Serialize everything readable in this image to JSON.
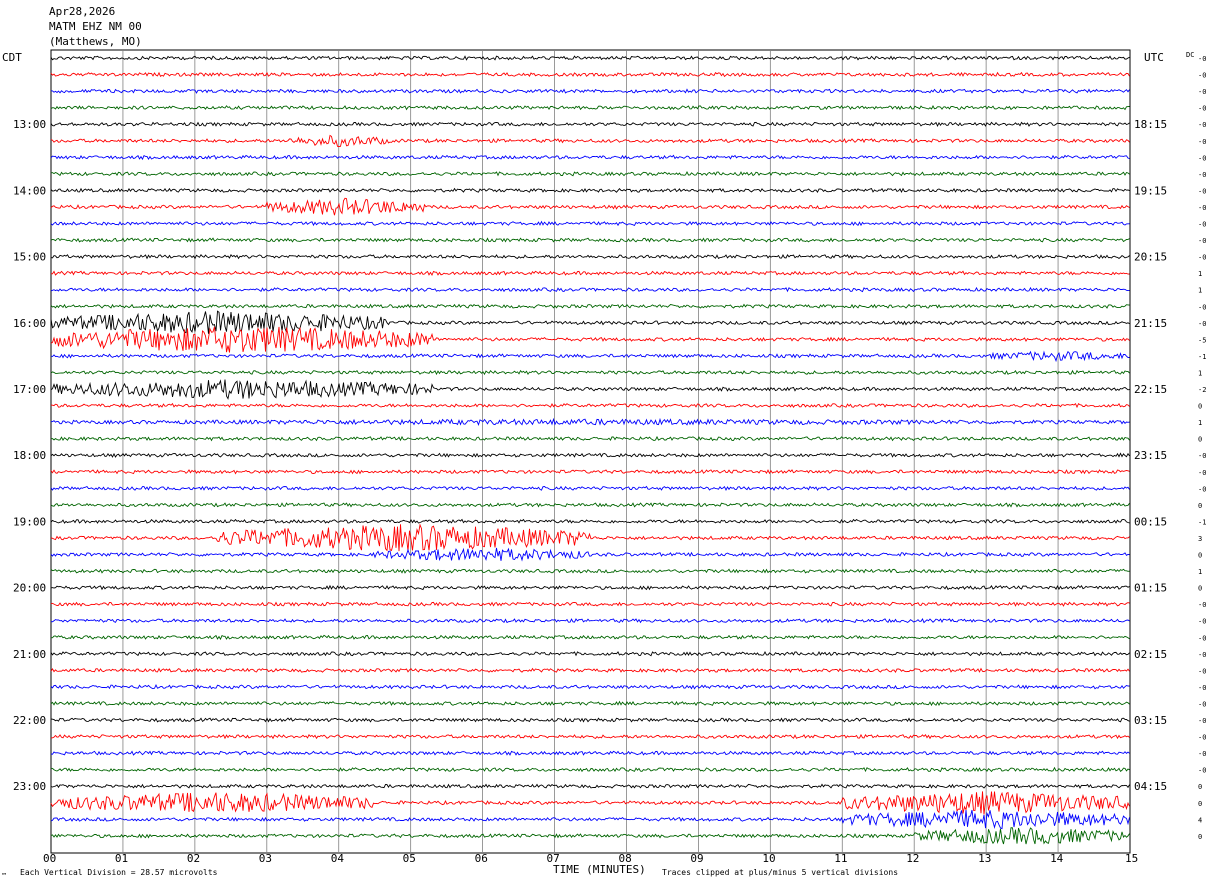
{
  "header": {
    "date": "Apr28,2026",
    "station": "MATM EHZ NM 00",
    "location": "(Matthews, MO)"
  },
  "left_timezone": "CDT",
  "right_timezone": "UTC",
  "dc_label": "DC",
  "footer": {
    "scale_note": "Each Vertical Division =   28.57 microvolts",
    "x_axis_title": "TIME (MINUTES)",
    "clip_note": "Traces clipped at plus/minus 5 vertical divisions",
    "corner_mark": "™"
  },
  "colors": {
    "trace_cycle": [
      "#000000",
      "#ff0000",
      "#0000ff",
      "#006400"
    ],
    "gridline": "#808080",
    "background": "#ffffff"
  },
  "chart_data": {
    "type": "helicorder",
    "x_axis": {
      "label": "TIME (MINUTES)",
      "range": [
        0,
        15
      ],
      "ticks": [
        "00",
        "01",
        "02",
        "03",
        "04",
        "05",
        "06",
        "07",
        "08",
        "09",
        "10",
        "11",
        "12",
        "13",
        "14",
        "15"
      ]
    },
    "row_minutes": 15,
    "rows": 48,
    "first_row_local_time": "12:00",
    "left_hour_labels": [
      "13:00",
      "14:00",
      "15:00",
      "16:00",
      "17:00",
      "18:00",
      "19:00",
      "20:00",
      "21:00",
      "22:00",
      "23:00"
    ],
    "left_hour_rows": [
      4,
      8,
      12,
      16,
      20,
      24,
      28,
      32,
      36,
      40,
      44
    ],
    "right_hour_labels": [
      "18:15",
      "19:15",
      "20:15",
      "21:15",
      "22:15",
      "23:15",
      "00:15",
      "01:15",
      "02:15",
      "03:15",
      "04:15"
    ],
    "right_hour_rows": [
      4,
      8,
      12,
      16,
      20,
      24,
      28,
      32,
      36,
      40,
      44
    ],
    "dc_offsets": [
      "-0",
      "-0",
      "-0",
      "-0",
      "-0",
      "-0",
      "-0",
      "-0",
      "-0",
      "-0",
      "-0",
      "-0",
      "-0",
      "1",
      "1",
      "-0",
      "-0",
      "-5",
      "-1",
      "1",
      "-2",
      "0",
      "1",
      "0",
      "-0",
      "-0",
      "-0",
      "0",
      "-1",
      "3",
      "0",
      "1",
      "0",
      "-0",
      "-0",
      "-0",
      "-0",
      "-0",
      "-0",
      "-0",
      "-0",
      "-0",
      "-0",
      "-0",
      "0",
      "0",
      "4",
      "0"
    ],
    "activity": [
      {
        "row": 5,
        "start_min": 3.3,
        "end_min": 4.7,
        "amplitude": 6
      },
      {
        "row": 9,
        "start_min": 3.0,
        "end_min": 5.2,
        "amplitude": 9
      },
      {
        "row": 16,
        "start_min": 0.0,
        "end_min": 4.7,
        "amplitude": 12
      },
      {
        "row": 17,
        "start_min": 0.0,
        "end_min": 5.3,
        "amplitude": 14
      },
      {
        "row": 20,
        "start_min": 0.0,
        "end_min": 5.3,
        "amplitude": 10
      },
      {
        "row": 29,
        "start_min": 2.3,
        "end_min": 7.5,
        "amplitude": 14
      },
      {
        "row": 30,
        "start_min": 4.5,
        "end_min": 7.5,
        "amplitude": 7
      },
      {
        "row": 45,
        "start_min": 0.0,
        "end_min": 4.5,
        "amplitude": 11
      },
      {
        "row": 45,
        "start_min": 11.0,
        "end_min": 15.0,
        "amplitude": 12
      },
      {
        "row": 46,
        "start_min": 11.0,
        "end_min": 15.0,
        "amplitude": 10
      },
      {
        "row": 47,
        "start_min": 12.0,
        "end_min": 15.0,
        "amplitude": 9
      },
      {
        "row": 22,
        "start_min": 0.0,
        "end_min": 15.0,
        "amplitude": 3
      },
      {
        "row": 18,
        "start_min": 13.0,
        "end_min": 15.0,
        "amplitude": 5
      }
    ]
  }
}
